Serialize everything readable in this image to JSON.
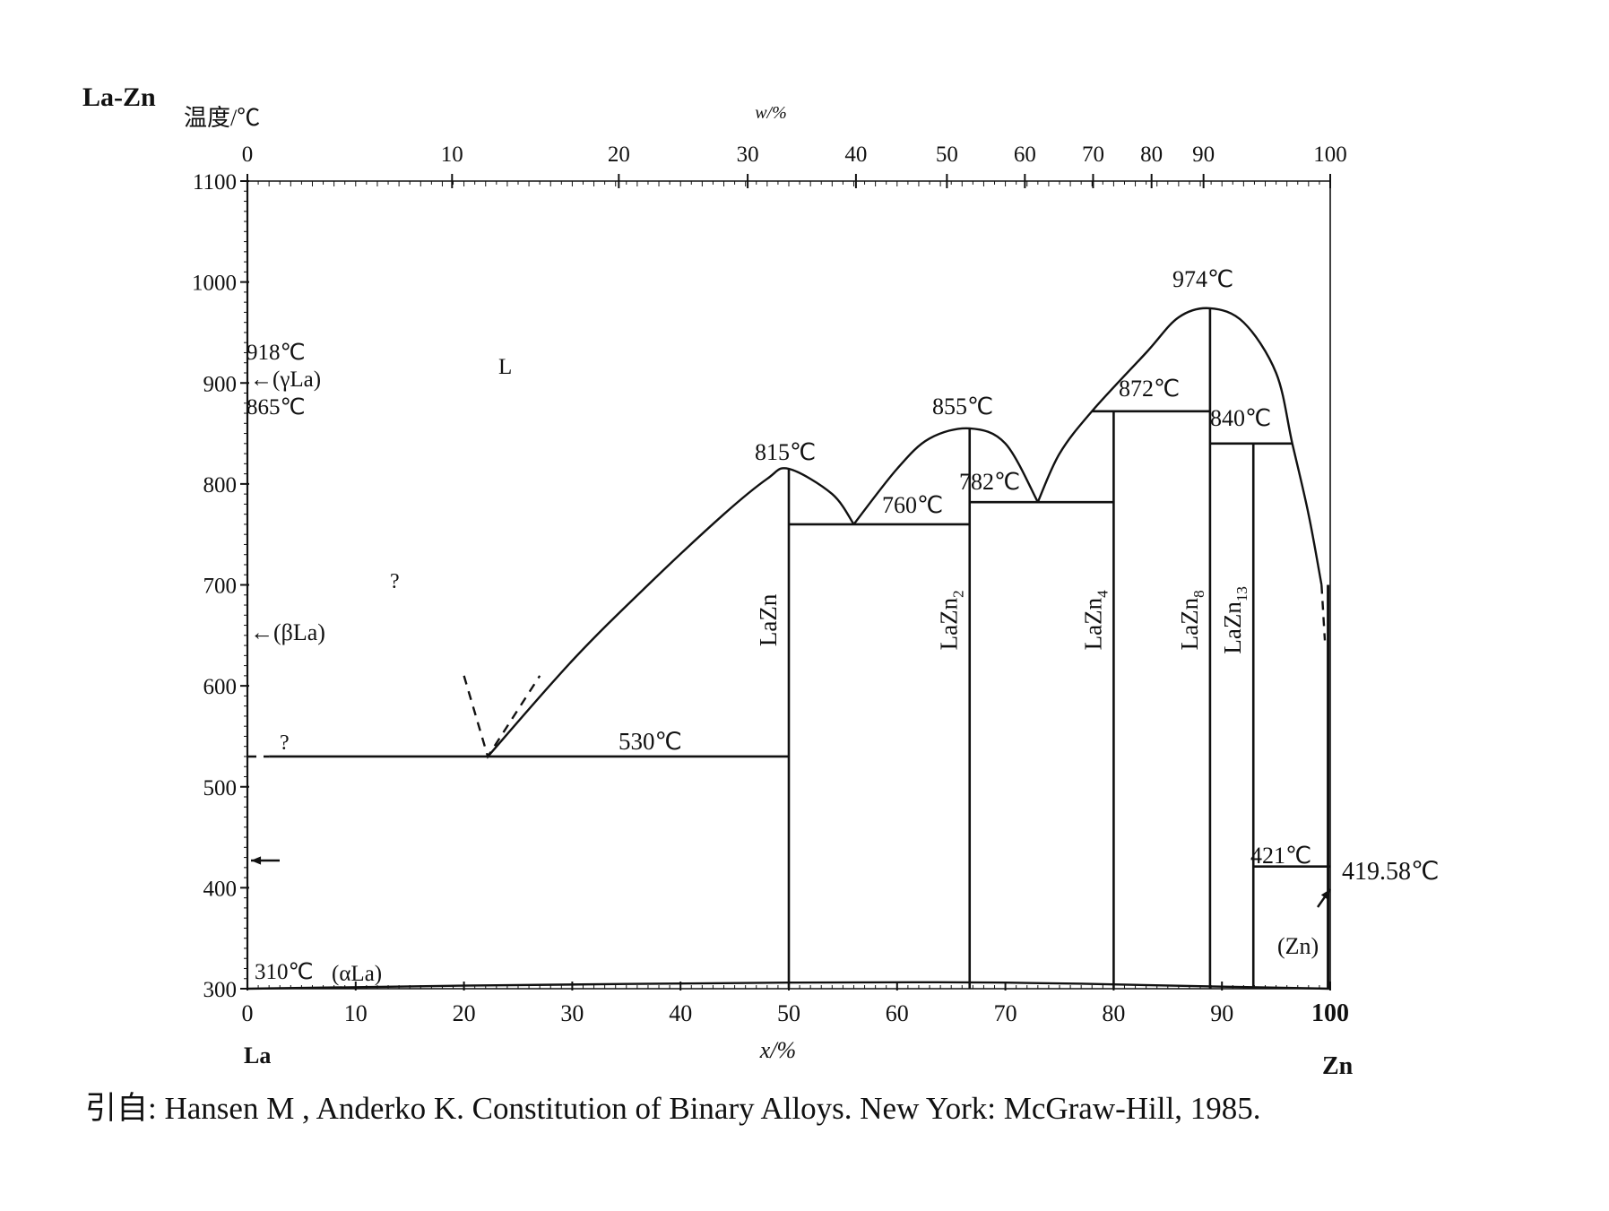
{
  "title": "La-Zn",
  "axis_left_label": "温度/℃",
  "axis_top_label": "w/%",
  "axis_bottom_label": "x/%",
  "element_left": "La",
  "element_right": "Zn",
  "y_ticks": [
    "300",
    "400",
    "500",
    "600",
    "700",
    "800",
    "900",
    "1000",
    "1100"
  ],
  "x_ticks": [
    "0",
    "10",
    "20",
    "30",
    "40",
    "50",
    "60",
    "70",
    "80",
    "90",
    "100"
  ],
  "top_ticks": [
    "0",
    "10",
    "20",
    "30",
    "40",
    "50",
    "60",
    "70",
    "80",
    "90",
    "100"
  ],
  "top_tick_x_percent": [
    0,
    18.9,
    34.3,
    46.2,
    56.2,
    64.6,
    71.8,
    78.1,
    83.5,
    88.3,
    100
  ],
  "labels": {
    "t918": "918℃",
    "gammaLa": "←(γLa)",
    "t865": "865℃",
    "liquid": "L",
    "q1": "?",
    "q2": "?",
    "betaLa": "←(βLa)",
    "t310": "310℃",
    "alphaLa": "(αLa)",
    "t815": "815℃",
    "t530": "530℃",
    "t855": "855℃",
    "t760": "760℃",
    "t782": "782℃",
    "t974": "974℃",
    "t872": "872℃",
    "t840": "840℃",
    "t421": "421℃",
    "t41958": "419.58℃",
    "zn_phase": "(Zn)"
  },
  "compounds": [
    {
      "name": "LaZn",
      "base": "LaZn",
      "sub": "",
      "x": 50
    },
    {
      "name": "LaZn2",
      "base": "LaZn",
      "sub": "2",
      "x": 66.7
    },
    {
      "name": "LaZn4",
      "base": "LaZn",
      "sub": "4",
      "x": 80
    },
    {
      "name": "LaZn8",
      "base": "LaZn",
      "sub": "8",
      "x": 88.9
    },
    {
      "name": "LaZn13",
      "base": "LaZn",
      "sub": "13",
      "x": 92.9
    }
  ],
  "caption": "引自: Hansen M , Anderko K. Constitution of Binary Alloys. New York: McGraw-Hill, 1985.",
  "chart_data": {
    "type": "phase-diagram",
    "system": "La-Zn",
    "x_unit": "x/% (at.% Zn)",
    "y_unit": "℃",
    "xlim": [
      0,
      100
    ],
    "ylim": [
      300,
      1100
    ],
    "invariants": [
      {
        "temperature": 918,
        "label": "918℃"
      },
      {
        "temperature": 865,
        "label": "865℃"
      },
      {
        "temperature": 310,
        "label": "310℃"
      },
      {
        "temperature": 530,
        "x": [
          0,
          50
        ],
        "label": "530℃"
      },
      {
        "temperature": 760,
        "x": [
          50,
          66.7
        ],
        "label": "760℃"
      },
      {
        "temperature": 782,
        "x": [
          66.7,
          80
        ],
        "label": "782℃"
      },
      {
        "temperature": 872,
        "x": [
          78,
          88.9
        ],
        "label": "872℃"
      },
      {
        "temperature": 840,
        "x": [
          88.9,
          96.5
        ],
        "label": "840℃"
      },
      {
        "temperature": 421,
        "x": [
          92.9,
          100
        ],
        "label": "421℃"
      }
    ],
    "melting_points": [
      {
        "compound": "LaZn",
        "x": 50,
        "temperature": 815
      },
      {
        "compound": "LaZn2",
        "x": 66.7,
        "temperature": 855
      },
      {
        "compound": "LaZn8",
        "x": 88.9,
        "temperature": 974
      },
      {
        "element": "Zn",
        "x": 100,
        "temperature": 419.58
      }
    ],
    "liquidus": [
      [
        [
          22.2,
          530
        ],
        [
          30,
          625
        ],
        [
          37,
          700
        ],
        [
          44,
          770
        ],
        [
          48,
          805
        ],
        [
          50,
          815
        ],
        [
          54,
          790
        ],
        [
          56,
          760
        ]
      ],
      [
        [
          56,
          760
        ],
        [
          60,
          815
        ],
        [
          63,
          845
        ],
        [
          66.7,
          855
        ],
        [
          70,
          840
        ],
        [
          73,
          782
        ]
      ],
      [
        [
          73,
          782
        ],
        [
          75,
          830
        ],
        [
          78,
          872
        ],
        [
          83,
          930
        ],
        [
          86,
          965
        ],
        [
          88.9,
          974
        ],
        [
          92,
          960
        ],
        [
          95,
          910
        ],
        [
          96.5,
          840
        ],
        [
          98,
          770
        ],
        [
          99.2,
          700
        ]
      ]
    ],
    "dashed_boundaries": [
      [
        [
          20,
          610
        ],
        [
          22.2,
          530
        ],
        [
          27,
          610
        ]
      ],
      [
        [
          99.2,
          700
        ],
        [
          99.5,
          645
        ]
      ],
      [
        [
          0,
          530
        ],
        [
          2,
          530
        ]
      ]
    ],
    "solubility_line": [
      [
        0,
        300
      ],
      [
        20,
        303
      ],
      [
        50,
        306
      ],
      [
        70,
        306
      ],
      [
        90,
        302
      ],
      [
        100,
        300
      ]
    ]
  }
}
